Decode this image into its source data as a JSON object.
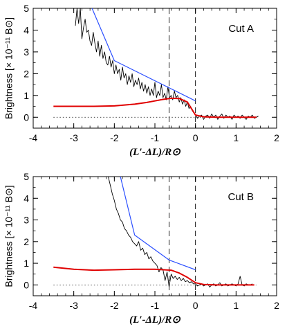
{
  "chart_data": [
    {
      "type": "line",
      "annotation": "Cut A",
      "xlabel": "(L′-ΔL)/R⊙",
      "ylabel": "Brightness [× 10⁻¹¹ B⊙]",
      "xlim": [
        -4,
        2
      ],
      "ylim": [
        -0.5,
        5
      ],
      "xticks": [
        -4,
        -3,
        -2,
        -1,
        0,
        1,
        2
      ],
      "yticks": [
        0,
        1,
        2,
        3,
        4,
        5
      ],
      "xtick_labels": [
        "-4",
        "-3",
        "-2",
        "-1",
        "0",
        "1",
        "2"
      ],
      "ytick_labels": [
        "0",
        "1",
        "2",
        "3",
        "4",
        "5"
      ],
      "vlines": [
        -0.65,
        0
      ],
      "hline": 0,
      "series": [
        {
          "color": "#000000",
          "x": [
            -2.96,
            -2.92,
            -2.88,
            -2.84,
            -2.8,
            -2.76,
            -2.72,
            -2.68,
            -2.64,
            -2.6,
            -2.56,
            -2.52,
            -2.48,
            -2.44,
            -2.4,
            -2.36,
            -2.32,
            -2.28,
            -2.24,
            -2.2,
            -2.16,
            -2.12,
            -2.08,
            -2.04,
            -2.0,
            -1.96,
            -1.92,
            -1.88,
            -1.84,
            -1.8,
            -1.76,
            -1.72,
            -1.68,
            -1.64,
            -1.6,
            -1.56,
            -1.52,
            -1.48,
            -1.44,
            -1.4,
            -1.36,
            -1.32,
            -1.28,
            -1.24,
            -1.2,
            -1.16,
            -1.12,
            -1.08,
            -1.04,
            -1.0,
            -0.96,
            -0.92,
            -0.88,
            -0.84,
            -0.8,
            -0.76,
            -0.72,
            -0.68,
            -0.64,
            -0.6,
            -0.56,
            -0.52,
            -0.48,
            -0.44,
            -0.4,
            -0.36,
            -0.32,
            -0.28,
            -0.24,
            -0.2,
            -0.16,
            -0.12,
            -0.08,
            -0.04,
            0.0,
            0.05,
            0.1,
            0.15,
            0.2,
            0.25,
            0.3,
            0.35,
            0.4,
            0.45,
            0.5,
            0.55,
            0.6,
            0.65,
            0.7,
            0.75,
            0.8,
            0.85,
            0.9,
            0.95,
            1.0,
            1.05,
            1.1,
            1.15,
            1.2,
            1.25,
            1.3,
            1.35,
            1.4,
            1.45,
            1.5,
            1.55
          ],
          "y": [
            4.2,
            5.0,
            4.3,
            5.0,
            3.6,
            4.1,
            4.5,
            3.9,
            4.0,
            3.5,
            3.3,
            3.9,
            3.4,
            3.0,
            3.5,
            2.8,
            3.3,
            2.7,
            3.0,
            2.5,
            2.4,
            2.8,
            2.3,
            2.6,
            2.0,
            2.4,
            2.0,
            2.2,
            1.7,
            2.3,
            1.8,
            2.0,
            1.5,
            1.9,
            1.6,
            2.0,
            1.4,
            1.7,
            1.5,
            1.8,
            1.3,
            1.6,
            1.2,
            1.5,
            1.1,
            1.4,
            1.0,
            1.3,
            1.0,
            1.6,
            0.9,
            1.2,
            1.0,
            1.5,
            0.9,
            1.1,
            0.8,
            1.4,
            0.9,
            1.0,
            0.8,
            1.2,
            0.9,
            1.0,
            0.7,
            0.9,
            0.6,
            0.8,
            0.5,
            0.7,
            0.4,
            0.5,
            0.3,
            0.2,
            0.1,
            -0.05,
            0.05,
            0.1,
            -0.1,
            0.05,
            0.1,
            -0.05,
            0.15,
            0.0,
            0.1,
            -0.1,
            0.05,
            0.15,
            -0.05,
            0.1,
            0.0,
            0.05,
            -0.1,
            0.1,
            0.0,
            0.05,
            -0.05,
            0.1,
            0.0,
            -0.1,
            0.05,
            0.0,
            0.1,
            -0.05,
            0.0,
            0.05
          ]
        },
        {
          "color": "#2b4fff",
          "x": [
            -2.55,
            -2.0,
            0.0
          ],
          "y": [
            5.0,
            2.6,
            0.75
          ]
        },
        {
          "color": "#e00000",
          "x": [
            -3.5,
            -3.0,
            -2.5,
            -2.0,
            -1.5,
            -1.2,
            -1.0,
            -0.8,
            -0.6,
            -0.4,
            -0.2,
            0.0,
            0.2,
            0.5,
            1.0,
            1.5
          ],
          "y": [
            0.5,
            0.5,
            0.5,
            0.52,
            0.6,
            0.68,
            0.75,
            0.82,
            0.87,
            0.86,
            0.7,
            0.1,
            0.02,
            0.0,
            0.0,
            0.0
          ]
        }
      ]
    },
    {
      "type": "line",
      "annotation": "Cut B",
      "xlabel": "(L′-ΔL)/R⊙",
      "ylabel": "Brightness [× 10⁻¹¹ B⊙]",
      "xlim": [
        -4,
        2
      ],
      "ylim": [
        -0.5,
        5
      ],
      "xticks": [
        -4,
        -3,
        -2,
        -1,
        0,
        1,
        2
      ],
      "yticks": [
        0,
        1,
        2,
        3,
        4,
        5
      ],
      "xtick_labels": [
        "-4",
        "-3",
        "-2",
        "-1",
        "0",
        "1",
        "2"
      ],
      "ytick_labels": [
        "0",
        "1",
        "2",
        "3",
        "4",
        "5"
      ],
      "vlines": [
        -0.65,
        0
      ],
      "hline": 0,
      "series": [
        {
          "color": "#000000",
          "x": [
            -2.15,
            -2.1,
            -2.05,
            -2.0,
            -1.95,
            -1.9,
            -1.85,
            -1.8,
            -1.75,
            -1.7,
            -1.65,
            -1.6,
            -1.55,
            -1.5,
            -1.45,
            -1.4,
            -1.35,
            -1.3,
            -1.25,
            -1.2,
            -1.15,
            -1.1,
            -1.05,
            -1.0,
            -0.95,
            -0.9,
            -0.85,
            -0.8,
            -0.75,
            -0.7,
            -0.65,
            -0.6,
            -0.55,
            -0.5,
            -0.45,
            -0.4,
            -0.35,
            -0.3,
            -0.25,
            -0.2,
            -0.15,
            -0.1,
            -0.05,
            0.0,
            0.05,
            0.1,
            0.15,
            0.2,
            0.25,
            0.3,
            0.35,
            0.4,
            0.45,
            0.5,
            0.55,
            0.6,
            0.65,
            0.7,
            0.75,
            0.8,
            0.85,
            0.9,
            0.95,
            1.0,
            1.05,
            1.1,
            1.15,
            1.2,
            1.25,
            1.3,
            1.35,
            1.4
          ],
          "y": [
            5.0,
            4.6,
            4.2,
            3.9,
            3.5,
            3.3,
            3.0,
            2.9,
            2.6,
            2.5,
            2.3,
            2.2,
            2.0,
            1.9,
            1.8,
            2.0,
            1.6,
            1.7,
            1.4,
            1.5,
            1.2,
            1.3,
            1.1,
            1.0,
            0.9,
            0.6,
            0.8,
            0.7,
            0.2,
            0.6,
            -0.1,
            0.5,
            0.3,
            0.4,
            0.25,
            0.35,
            0.2,
            0.3,
            0.15,
            0.2,
            0.1,
            0.15,
            0.05,
            0.05,
            -0.05,
            0.0,
            0.05,
            -0.05,
            0.0,
            0.05,
            -0.1,
            0.0,
            0.05,
            -0.05,
            0.0,
            0.1,
            -0.05,
            0.0,
            0.05,
            -0.05,
            0.0,
            0.05,
            0.0,
            -0.05,
            0.05,
            0.4,
            0.0,
            -0.05,
            0.05,
            0.0,
            0.0,
            0.05
          ]
        },
        {
          "color": "#2b4fff",
          "x": [
            -1.85,
            -1.5,
            -0.65,
            0.0
          ],
          "y": [
            5.0,
            2.3,
            1.15,
            0.7
          ]
        },
        {
          "color": "#e00000",
          "x": [
            -3.5,
            -3.0,
            -2.5,
            -2.0,
            -1.5,
            -1.0,
            -0.6,
            -0.4,
            -0.2,
            0.0,
            0.2,
            0.5,
            1.0,
            1.45
          ],
          "y": [
            0.82,
            0.72,
            0.68,
            0.7,
            0.72,
            0.72,
            0.68,
            0.55,
            0.35,
            0.1,
            0.02,
            0.0,
            0.0,
            0.0
          ]
        }
      ]
    }
  ]
}
